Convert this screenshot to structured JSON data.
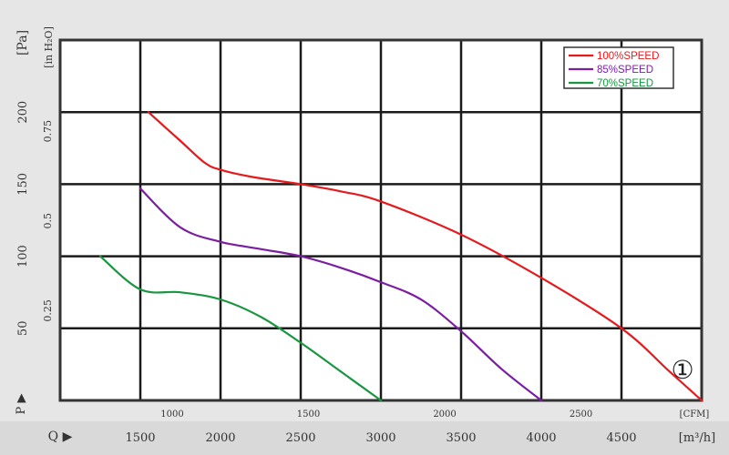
{
  "chart_data": {
    "type": "line",
    "title": "",
    "xlabel": "",
    "ylabel": "",
    "x_unit_primary": "[m³/h]",
    "x_unit_secondary": "[CFM]",
    "x_axis_marker": "Q ▶",
    "y_unit_primary": "[Pa]",
    "y_unit_secondary": "[in H₂O]",
    "y_axis_marker": "P ▶",
    "xlim": [
      1000,
      5000
    ],
    "ylim": [
      0,
      250
    ],
    "x_ticks": [
      "1500",
      "2000",
      "2500",
      "3000",
      "3500",
      "4000",
      "4500"
    ],
    "x_ticks_cfm": [
      "1000",
      "1500",
      "2000",
      "2500"
    ],
    "y_ticks": [
      "50",
      "100",
      "150",
      "200"
    ],
    "y_ticks_inh2o": [
      "0.25",
      "0.5",
      "0.75"
    ],
    "grid": true,
    "legend_position": "top-right",
    "curve_label": "①",
    "series": [
      {
        "name": "100%SPEED",
        "color": "#e41a1c",
        "x": [
          1550,
          1750,
          1900,
          2000,
          2200,
          2500,
          2750,
          3000,
          3500,
          4000,
          4500,
          4800,
          5000
        ],
        "y": [
          200,
          180,
          165,
          160,
          155,
          150,
          145,
          138,
          115,
          85,
          50,
          20,
          0
        ]
      },
      {
        "name": "85%SPEED",
        "color": "#7b1fa2",
        "x": [
          1500,
          1750,
          2000,
          2250,
          2500,
          2750,
          3000,
          3250,
          3500,
          3750,
          4000
        ],
        "y": [
          147,
          120,
          110,
          105,
          100,
          92,
          82,
          70,
          48,
          22,
          0
        ]
      },
      {
        "name": "70%SPEED",
        "color": "#1a9641",
        "x": [
          1250,
          1500,
          1750,
          2000,
          2250,
          2500,
          2750,
          3000
        ],
        "y": [
          100,
          77,
          75,
          70,
          58,
          40,
          20,
          0
        ]
      }
    ]
  }
}
